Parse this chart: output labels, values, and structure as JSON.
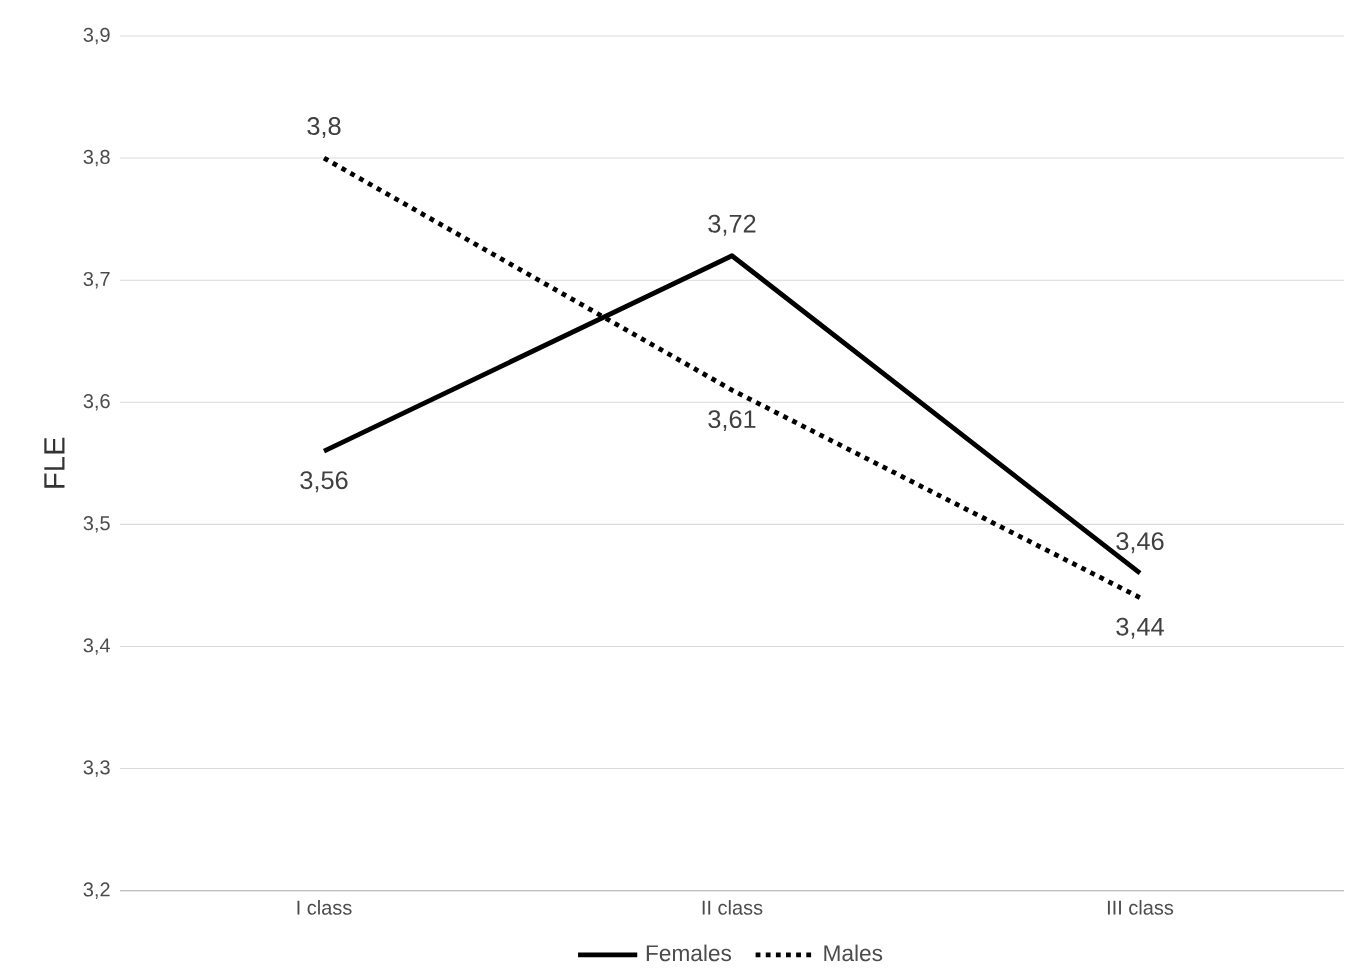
{
  "chart_data": {
    "type": "line",
    "ylabel": "FLE",
    "categories": [
      "I class",
      "II class",
      "III class"
    ],
    "series": [
      {
        "name": "Females",
        "color": "#000000",
        "line_style": "solid",
        "values": [
          3.56,
          3.72,
          3.46
        ],
        "value_labels": [
          "3,56",
          "3,72",
          "3,46"
        ]
      },
      {
        "name": "Males",
        "color": "#000000",
        "line_style": "dotted",
        "values": [
          3.8,
          3.61,
          3.44
        ],
        "value_labels": [
          "3,8",
          "3,61",
          "3,44"
        ]
      }
    ],
    "ylim": [
      3.2,
      3.9
    ],
    "yticks": [
      {
        "value": 3.2,
        "label": "3,2"
      },
      {
        "value": 3.3,
        "label": "3,3"
      },
      {
        "value": 3.4,
        "label": "3,4"
      },
      {
        "value": 3.5,
        "label": "3,5"
      },
      {
        "value": 3.6,
        "label": "3,6"
      },
      {
        "value": 3.7,
        "label": "3,7"
      },
      {
        "value": 3.8,
        "label": "3,8"
      },
      {
        "value": 3.9,
        "label": "3,9"
      }
    ],
    "grid": "y",
    "legend": "bottom",
    "marker": "none"
  }
}
